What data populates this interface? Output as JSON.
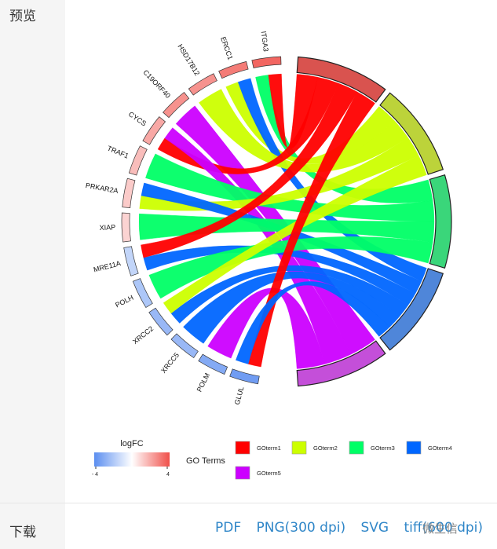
{
  "preview_label": "预览",
  "download_label": "下载",
  "download_links": [
    "PDF",
    "PNG(300 dpi)",
    "SVG",
    "tiff(600 dpi)"
  ],
  "watermark": "微生信",
  "colors": {
    "GOterm1": "#ff0000",
    "GOterm2": "#ccff00",
    "GOterm3": "#00ff66",
    "GOterm4": "#0066ff",
    "GOterm5": "#cc00ff",
    "link": "#2f86c8"
  },
  "chart_data": {
    "type": "chord",
    "genes": [
      "ITGA3",
      "ERCC1",
      "HSD17B12",
      "C19ORF40",
      "CYCS",
      "TRAF1",
      "PRKAR2A",
      "XIAP",
      "MRE11A",
      "POLH",
      "XRCC2",
      "XRCC5",
      "POLM",
      "GLUL"
    ],
    "logFC": [
      3.5,
      3.0,
      2.5,
      2.5,
      2.0,
      1.5,
      1.2,
      1.0,
      -1.5,
      -2.0,
      -2.5,
      -2.5,
      -3.0,
      -3.5
    ],
    "terms": [
      "GOterm1",
      "GOterm2",
      "GOterm3",
      "GOterm4",
      "GOterm5"
    ],
    "term_colors": [
      "#d9534f",
      "#bcd33a",
      "#3ad67a",
      "#4f86d9",
      "#c44fd9"
    ],
    "links": [
      {
        "gene": "ITGA3",
        "term": "GOterm3"
      },
      {
        "gene": "ITGA3",
        "term": "GOterm1"
      },
      {
        "gene": "ERCC1",
        "term": "GOterm2"
      },
      {
        "gene": "ERCC1",
        "term": "GOterm4"
      },
      {
        "gene": "HSD17B12",
        "term": "GOterm2"
      },
      {
        "gene": "C19ORF40",
        "term": "GOterm5"
      },
      {
        "gene": "CYCS",
        "term": "GOterm1"
      },
      {
        "gene": "CYCS",
        "term": "GOterm5"
      },
      {
        "gene": "TRAF1",
        "term": "GOterm3"
      },
      {
        "gene": "PRKAR2A",
        "term": "GOterm2"
      },
      {
        "gene": "PRKAR2A",
        "term": "GOterm4"
      },
      {
        "gene": "XIAP",
        "term": "GOterm3"
      },
      {
        "gene": "MRE11A",
        "term": "GOterm4"
      },
      {
        "gene": "MRE11A",
        "term": "GOterm1"
      },
      {
        "gene": "POLH",
        "term": "GOterm3"
      },
      {
        "gene": "XRCC2",
        "term": "GOterm4"
      },
      {
        "gene": "XRCC2",
        "term": "GOterm2"
      },
      {
        "gene": "XRCC5",
        "term": "GOterm4"
      },
      {
        "gene": "POLM",
        "term": "GOterm5"
      },
      {
        "gene": "GLUL",
        "term": "GOterm1"
      },
      {
        "gene": "GLUL",
        "term": "GOterm4"
      }
    ],
    "legend": {
      "logfc_title": "logFC",
      "logfc_min": "- 4",
      "logfc_max": "4",
      "go_title": "GO Terms"
    }
  }
}
